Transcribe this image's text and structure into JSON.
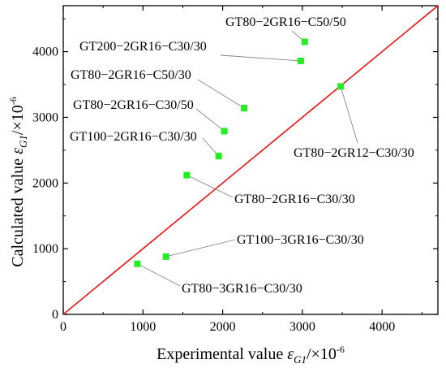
{
  "chart_data": {
    "type": "scatter",
    "title": "",
    "xlabel": {
      "main": "Experimental value ",
      "var": "ε",
      "sub": "G1",
      "unit": "/×10",
      "exp": "-6"
    },
    "ylabel": {
      "main": "Calculated value ",
      "var": "ε",
      "sub": "G1",
      "unit": "/×10",
      "exp": "-6"
    },
    "xlim": [
      0,
      4700
    ],
    "ylim": [
      0,
      4700
    ],
    "x_ticks": [
      0,
      1000,
      2000,
      3000,
      4000
    ],
    "y_ticks": [
      0,
      1000,
      2000,
      3000,
      4000
    ],
    "x_tick_labels": [
      "0",
      "1000",
      "2000",
      "3000",
      "4000"
    ],
    "y_tick_labels": [
      "0",
      "1000",
      "2000",
      "3000",
      "4000"
    ],
    "grid": false,
    "legend": "none",
    "marker_color": "#22ee22",
    "reference_line": {
      "from": [
        0,
        0
      ],
      "to": [
        4700,
        4700
      ],
      "color": "#ee1111"
    },
    "points": [
      {
        "x": 3030,
        "y": 4150,
        "label": "GT80−2GR16−C50/50"
      },
      {
        "x": 2980,
        "y": 3860,
        "label": "GT200−2GR16−C30/30"
      },
      {
        "x": 3480,
        "y": 3470,
        "label": "GT80−2GR12−C30/30"
      },
      {
        "x": 2270,
        "y": 3140,
        "label": "GT80−2GR16−C50/30"
      },
      {
        "x": 2020,
        "y": 2790,
        "label": "GT80−2GR16−C30/50"
      },
      {
        "x": 1950,
        "y": 2410,
        "label": "GT100−2GR16−C30/30"
      },
      {
        "x": 1550,
        "y": 2120,
        "label": "GT80−2GR16−C30/30"
      },
      {
        "x": 1290,
        "y": 880,
        "label": "GT100−3GR16−C30/30"
      },
      {
        "x": 930,
        "y": 770,
        "label": "GT80−3GR16−C30/30"
      }
    ]
  }
}
